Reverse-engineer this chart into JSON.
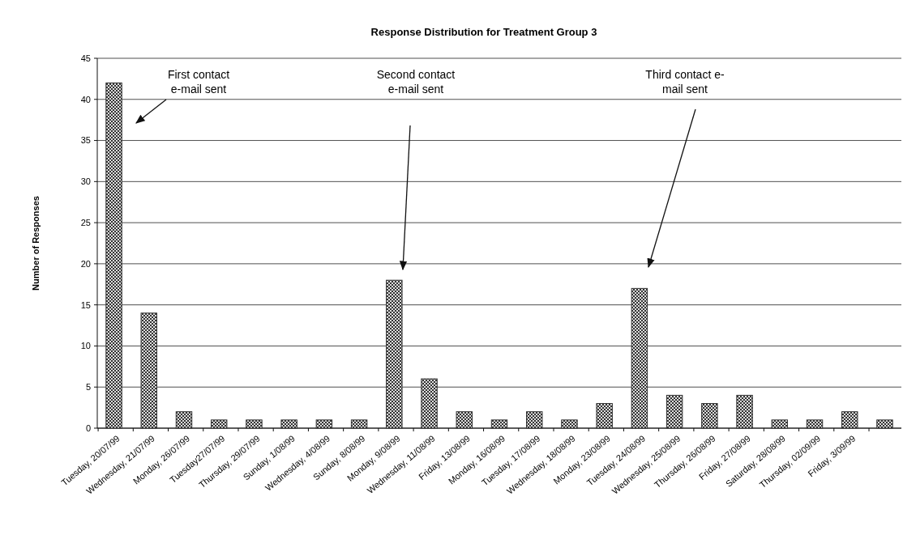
{
  "chart_data": {
    "type": "bar",
    "title": "Response Distribution for Treatment Group 3",
    "ylabel": "Number of Responses",
    "categories": [
      "Tuesday, 20/07/99",
      "Wednesday, 21/07/99",
      "Monday, 26/07/99",
      "Tuesday27/07/99",
      "Thursday, 29/07/99",
      "Sunday, 1/08/99",
      "Wednesday, 4/08/99",
      "Sunday, 8/08/99",
      "Monday, 9/08/99",
      "Wednesday, 11/08/99",
      "Friday, 13/08/99",
      "Monday, 16/08/99",
      "Tuesday, 17/08/99",
      "Wednesday, 18/08/99",
      "Monday, 23/08/99",
      "Tuesday, 24/08/99",
      "Wednesday, 25/08/99",
      "Thursday, 26/08/99",
      "Friday, 27/08/99",
      "Saturday, 28/08/99",
      "Thursday, 02/09/99",
      "Friday, 3/09/99",
      null
    ],
    "values": [
      42,
      14,
      2,
      1,
      1,
      1,
      1,
      1,
      18,
      6,
      2,
      1,
      2,
      1,
      3,
      17,
      4,
      3,
      4,
      1,
      1,
      2,
      1
    ],
    "color": "#333333",
    "ylim": [
      0,
      45
    ],
    "yticks": [
      0,
      5,
      10,
      15,
      20,
      25,
      30,
      35,
      40,
      45
    ],
    "grid": "y",
    "annotations": [
      "First contact\ne-mail sent",
      "Second contact\ne-mail sent",
      "Third  contact e-\nmail sent"
    ]
  }
}
